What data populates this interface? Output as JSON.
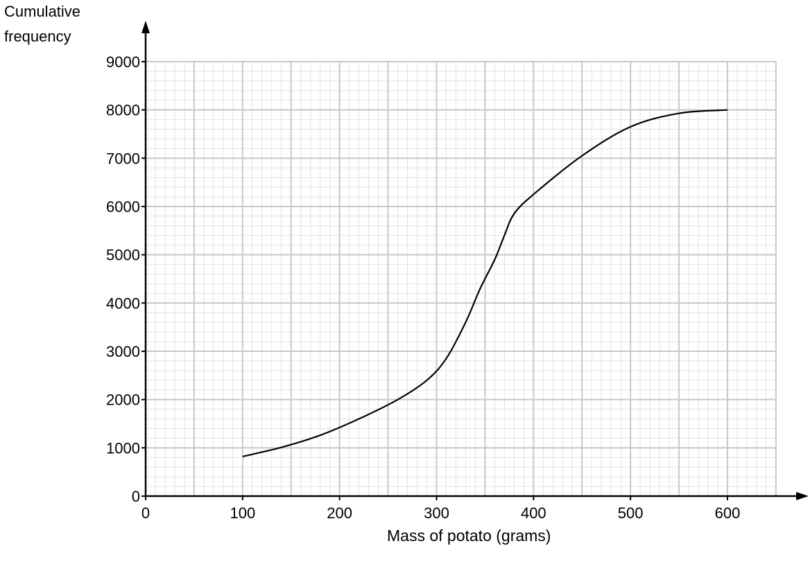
{
  "chart_data": {
    "type": "line",
    "title": "",
    "ylabel_lines": [
      "Cumulative",
      "frequency"
    ],
    "xlabel": "Mass of potato (grams)",
    "xlim": [
      0,
      650
    ],
    "ylim": [
      0,
      9000
    ],
    "x_ticks": [
      0,
      100,
      200,
      300,
      400,
      500,
      600
    ],
    "y_ticks": [
      0,
      1000,
      2000,
      3000,
      4000,
      5000,
      6000,
      7000,
      8000,
      9000
    ],
    "x_major_grid_step": 50,
    "x_minor_grid_step": 10,
    "y_major_grid_step": 1000,
    "y_minor_grid_step": 200,
    "grid": true,
    "colors": {
      "major_grid": "#c8c8c8",
      "minor_grid": "#e2e2e2",
      "axis": "#000000",
      "curve": "#000000"
    },
    "series": [
      {
        "x": [
          100,
          140,
          180,
          220,
          260,
          290,
          310,
          330,
          345,
          360,
          370,
          380,
          400,
          450,
          500,
          550,
          600
        ],
        "y": [
          820,
          1010,
          1260,
          1600,
          2000,
          2400,
          2850,
          3600,
          4300,
          4900,
          5400,
          5850,
          6250,
          7050,
          7650,
          7930,
          8000
        ]
      }
    ]
  }
}
